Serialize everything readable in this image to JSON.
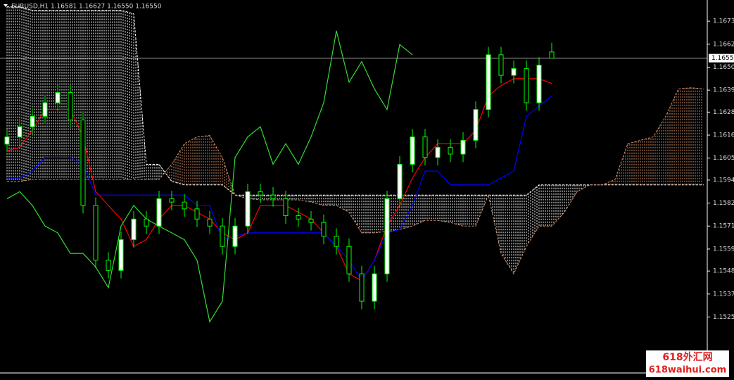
{
  "chart_data": {
    "type": "candlestick",
    "title": "EURUSD,H1  1.16581 1.16627 1.16550 1.16550",
    "ylim": [
      1.14975,
      1.16841
    ],
    "yticks": [
      1.16735,
      {
        "value": 1.1662,
        "label": "1.16620"
      },
      1.16505,
      {
        "value": 1.1639,
        "label": "1.16390"
      },
      {
        "value": 1.1628,
        "label": "1.16280"
      },
      1.16165,
      {
        "value": 1.1605,
        "label": "1.16050"
      },
      {
        "value": 1.1594,
        "label": "1.15940"
      },
      1.15825,
      {
        "value": 1.1571,
        "label": "1.15710"
      },
      1.15595,
      1.15485,
      {
        "value": 1.1537,
        "label": "1.15370"
      },
      1.15255
    ],
    "current_price": {
      "value": 1.1655,
      "label": "1.16550"
    },
    "up_color": "#ffffff",
    "down_color": "#000000",
    "candle_outline": "#00ff00",
    "open": [
      1.1612,
      1.16156,
      1.16207,
      1.16259,
      1.16327,
      1.16378,
      1.16241,
      1.15813,
      1.15539,
      1.15488,
      1.15642,
      1.15745,
      1.1571,
      1.15847,
      1.1583,
      1.15796,
      1.15745,
      1.1571,
      1.15608,
      1.1571,
      1.15882,
      1.15865,
      1.15847,
      1.15762,
      1.15745,
      1.15728,
      1.15659,
      1.15608,
      1.15471,
      1.15334,
      1.15471,
      1.15847,
      1.16019,
      1.16156,
      1.16053,
      1.16104,
      1.1607,
      1.16139,
      1.16293,
      1.16567,
      1.16464,
      1.16498,
      1.16327,
      1.16581,
      null,
      null,
      null,
      null,
      null,
      null,
      null,
      null,
      null,
      null,
      null,
      null
    ],
    "high": [
      1.16196,
      1.16247,
      1.16299,
      1.16367,
      1.16418,
      1.16418,
      1.16281,
      1.15853,
      1.15579,
      1.15682,
      1.15785,
      1.15785,
      1.15887,
      1.15887,
      1.1587,
      1.15836,
      1.15785,
      1.1575,
      1.1575,
      1.15922,
      1.15922,
      1.15905,
      1.15887,
      1.15802,
      1.15785,
      1.15768,
      1.15699,
      1.15648,
      1.15511,
      1.15511,
      1.15887,
      1.16059,
      1.16196,
      1.16196,
      1.16144,
      1.16144,
      1.16179,
      1.16333,
      1.16607,
      1.16607,
      1.16538,
      1.16538,
      1.16555,
      1.16627,
      null,
      null,
      null,
      null,
      null,
      null,
      null,
      null,
      null,
      null,
      null,
      null
    ],
    "low": [
      1.1608,
      1.16116,
      1.16167,
      1.16219,
      1.16287,
      1.16201,
      1.15773,
      1.15499,
      1.15448,
      1.15448,
      1.15602,
      1.1567,
      1.1567,
      1.1579,
      1.15756,
      1.15705,
      1.1567,
      1.15568,
      1.15568,
      1.1567,
      1.15825,
      1.15807,
      1.15722,
      1.15705,
      1.15688,
      1.15619,
      1.15568,
      1.15431,
      1.15294,
      1.15294,
      1.15431,
      1.15807,
      1.15979,
      1.16013,
      1.16013,
      1.1603,
      1.1603,
      1.16099,
      1.16253,
      1.16424,
      1.16424,
      1.16287,
      1.16287,
      1.1655,
      null,
      null,
      null,
      null,
      null,
      null,
      null,
      null,
      null,
      null,
      null,
      null
    ],
    "close": [
      1.16156,
      1.16207,
      1.16259,
      1.16327,
      1.16378,
      1.16241,
      1.15813,
      1.15539,
      1.15488,
      1.15642,
      1.15745,
      1.1571,
      1.15847,
      1.1583,
      1.15796,
      1.15745,
      1.1571,
      1.15608,
      1.1571,
      1.15882,
      1.15865,
      1.15847,
      1.15762,
      1.15745,
      1.15728,
      1.15659,
      1.15608,
      1.15471,
      1.15334,
      1.15471,
      1.15847,
      1.16019,
      1.16156,
      1.16053,
      1.16104,
      1.1607,
      1.16139,
      1.16293,
      1.16567,
      1.16464,
      1.16498,
      1.16327,
      1.16515,
      1.1655,
      null,
      null,
      null,
      null,
      null,
      null,
      null,
      null,
      null,
      null,
      null,
      null
    ],
    "cloud": {
      "up_color": "#ffffff",
      "down_color": "#d2906a",
      "span_a": [
        1.16807,
        1.16807,
        1.1679,
        1.1679,
        1.1679,
        1.1679,
        1.1679,
        1.1679,
        1.1679,
        1.1679,
        1.16772,
        1.16019,
        1.16019,
        1.15933,
        1.15916,
        1.15916,
        1.15916,
        1.15916,
        1.15865,
        1.15865,
        1.15865,
        1.15865,
        1.15865,
        1.15865,
        1.15865,
        1.15865,
        1.15865,
        1.15865,
        1.15865,
        1.15865,
        1.15865,
        1.15865,
        1.15865,
        1.15865,
        1.15865,
        1.15865,
        1.15865,
        1.15865,
        1.15865,
        1.15865,
        1.15865,
        1.15865,
        1.15916,
        1.15916,
        1.15916,
        1.15916,
        1.15916,
        1.15916,
        1.15916,
        1.15916,
        1.15916,
        1.15916,
        1.15916,
        1.15916,
        1.15916,
        1.15916
      ],
      "span_b": [
        1.15933,
        1.15933,
        1.15943,
        1.15943,
        1.15943,
        1.15943,
        1.15943,
        1.15943,
        1.15943,
        1.15943,
        1.15943,
        1.15943,
        1.15943,
        1.16019,
        1.16122,
        1.16156,
        1.16163,
        1.16053,
        1.15865,
        1.15847,
        1.15841,
        1.15841,
        1.15841,
        1.15841,
        1.1583,
        1.15813,
        1.15813,
        1.15779,
        1.15676,
        1.15676,
        1.15683,
        1.15693,
        1.1571,
        1.15738,
        1.15738,
        1.15728,
        1.1571,
        1.1571,
        1.15865,
        1.15573,
        1.15471,
        1.15608,
        1.1571,
        1.1571,
        1.15779,
        1.15882,
        1.15916,
        1.15916,
        1.15943,
        1.16122,
        1.16139,
        1.16156,
        1.16259,
        1.16396,
        1.16402,
        1.16396
      ]
    },
    "series": [
      {
        "color": "#ff0000",
        "values": [
          1.16087,
          1.16104,
          1.1619,
          1.16293,
          1.16293,
          1.16293,
          1.16156,
          1.15882,
          1.15813,
          1.15745,
          1.15608,
          1.15642,
          1.15745,
          1.15813,
          1.15813,
          1.15779,
          1.15745,
          1.15676,
          1.15642,
          1.15676,
          1.15813,
          1.15813,
          1.15813,
          1.15779,
          1.15745,
          1.15676,
          1.15608,
          1.15471,
          1.15436,
          1.15539,
          1.1571,
          1.15813,
          1.1595,
          1.16053,
          1.16122,
          1.16122,
          1.16122,
          1.1619,
          1.16361,
          1.16413,
          1.16447,
          1.16447,
          1.16447,
          1.16423,
          null,
          null,
          null,
          null,
          null,
          null,
          null,
          null,
          null,
          null,
          null,
          null
        ]
      },
      {
        "color": "#0000ff",
        "values": [
          1.1595,
          1.1595,
          1.15985,
          1.16053,
          1.16053,
          1.16053,
          1.16019,
          1.15865,
          1.15865,
          1.15865,
          1.15865,
          1.15865,
          1.15865,
          1.15865,
          1.15865,
          1.15813,
          1.15813,
          1.15642,
          1.15659,
          1.15676,
          1.15676,
          1.15676,
          1.15676,
          1.15676,
          1.15676,
          1.15676,
          1.15608,
          1.15539,
          1.15436,
          1.15539,
          1.15676,
          1.15693,
          1.15813,
          1.15985,
          1.15985,
          1.15916,
          1.15916,
          1.15916,
          1.15916,
          1.1595,
          1.15985,
          1.16259,
          1.1631,
          1.16361,
          null,
          null,
          null,
          null,
          null,
          null,
          null,
          null,
          null,
          null,
          null,
          null
        ]
      },
      {
        "color": "#33dd33",
        "values": [
          1.15847,
          1.15882,
          1.15813,
          1.1571,
          1.15676,
          1.15573,
          1.15573,
          1.15505,
          1.15402,
          1.1571,
          1.15813,
          1.15745,
          1.1571,
          1.15676,
          1.15642,
          1.15539,
          1.15231,
          1.15334,
          1.16053,
          1.16156,
          1.16207,
          1.16019,
          1.16122,
          1.16019,
          1.16156,
          1.16327,
          1.16687,
          1.1643,
          1.16533,
          1.16396,
          1.16293,
          1.16618,
          1.16567,
          null,
          null,
          null,
          null,
          null,
          null,
          null,
          null,
          null,
          null,
          null,
          null,
          null,
          null,
          null,
          null,
          null,
          null,
          null,
          null,
          null,
          null,
          null
        ]
      }
    ],
    "watermark": {
      "line1": "618外汇网",
      "line2": "618waihui.com"
    }
  }
}
